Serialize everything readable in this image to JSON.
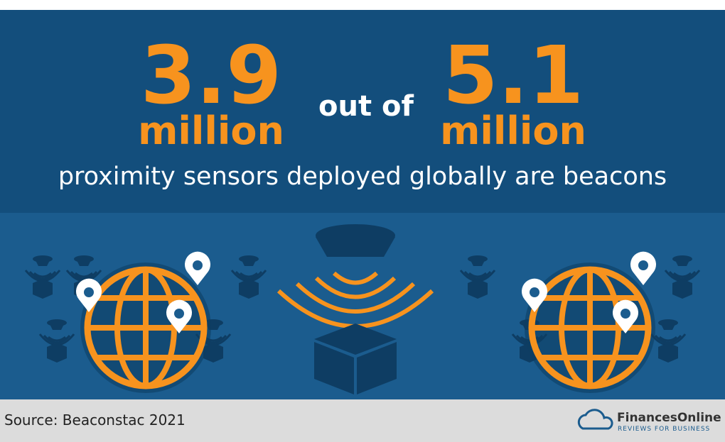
{
  "headline": {
    "left": {
      "number": "3.9",
      "unit": "million"
    },
    "connector": "out of",
    "right": {
      "number": "5.1",
      "unit": "million"
    },
    "subtitle": "proximity sensors deployed globally are beacons"
  },
  "footer": {
    "source": "Source: Beaconstac 2021",
    "logo": {
      "name": "FinancesOnline",
      "tagline": "REVIEWS FOR BUSINESS"
    }
  }
}
